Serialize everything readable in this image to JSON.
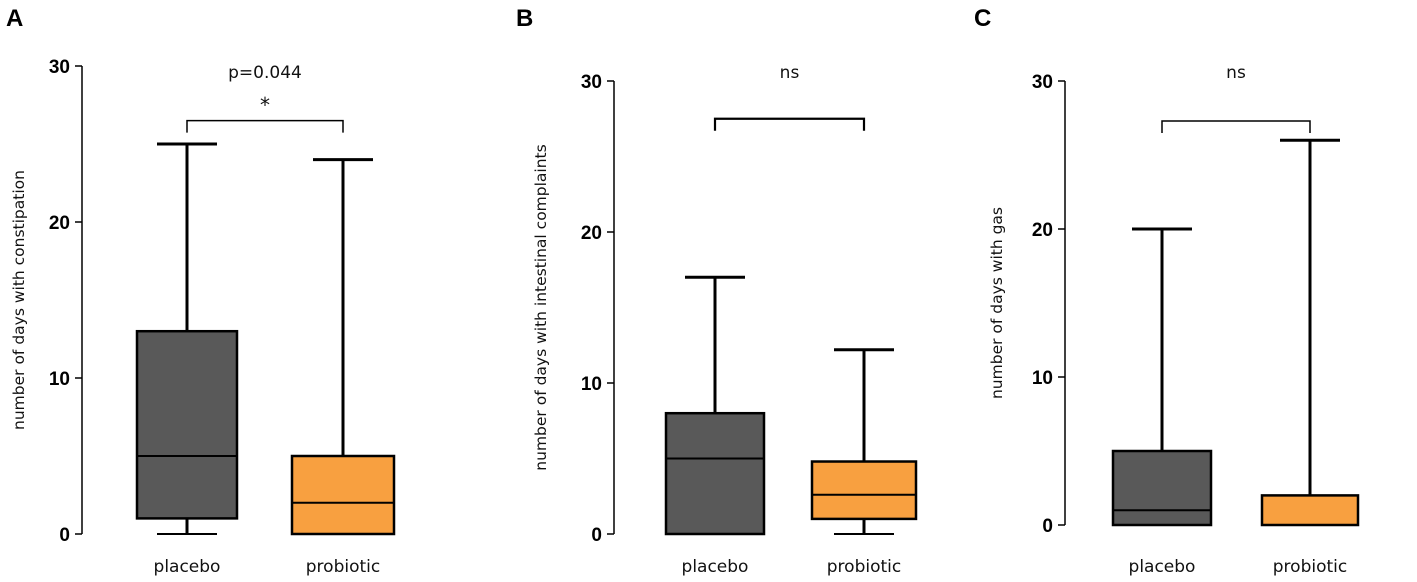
{
  "chart_data": [
    {
      "type": "box",
      "panel_label": "A",
      "ylabel": "number  of days with constipation",
      "ylim": [
        0,
        30
      ],
      "yticks": [
        0,
        10,
        20,
        30
      ],
      "categories": [
        "placebo",
        "probiotic"
      ],
      "boxes": [
        {
          "name": "placebo",
          "min": 0,
          "q1": 1,
          "median": 5,
          "q3": 13,
          "max": 25,
          "color": "#595959"
        },
        {
          "name": "probiotic",
          "min": 0,
          "q1": 0,
          "median": 2,
          "q3": 5,
          "max": 24,
          "color": "#f8a040"
        }
      ],
      "annotation": {
        "text": "p=0.044",
        "marker": "*",
        "bracket_y": 26.5
      }
    },
    {
      "type": "box",
      "panel_label": "B",
      "ylabel": "number  of days with intestinal complaints",
      "ylim": [
        0,
        30
      ],
      "yticks": [
        0,
        10,
        20,
        30
      ],
      "categories": [
        "placebo",
        "probiotic"
      ],
      "boxes": [
        {
          "name": "placebo",
          "min": 0,
          "q1": 0,
          "median": 5,
          "q3": 8,
          "max": 17,
          "color": "#595959"
        },
        {
          "name": "probiotic",
          "min": 0,
          "q1": 1,
          "median": 2.6,
          "q3": 4.8,
          "max": 12.2,
          "color": "#f8a040"
        }
      ],
      "annotation": {
        "text": "ns",
        "marker": "",
        "bracket_y": 27.5
      }
    },
    {
      "type": "box",
      "panel_label": "C",
      "ylabel": "number  of days with gas",
      "ylim": [
        0,
        30
      ],
      "yticks": [
        0,
        10,
        20,
        30
      ],
      "categories": [
        "placebo",
        "probiotic"
      ],
      "boxes": [
        {
          "name": "placebo",
          "min": 0,
          "q1": 0,
          "median": 1,
          "q3": 5,
          "max": 20,
          "color": "#595959"
        },
        {
          "name": "probiotic",
          "min": 0,
          "q1": 0,
          "median": 0,
          "q3": 2,
          "max": 26,
          "color": "#f8a040"
        }
      ],
      "annotation": {
        "text": "ns",
        "marker": "",
        "bracket_y": 27.3
      }
    }
  ]
}
